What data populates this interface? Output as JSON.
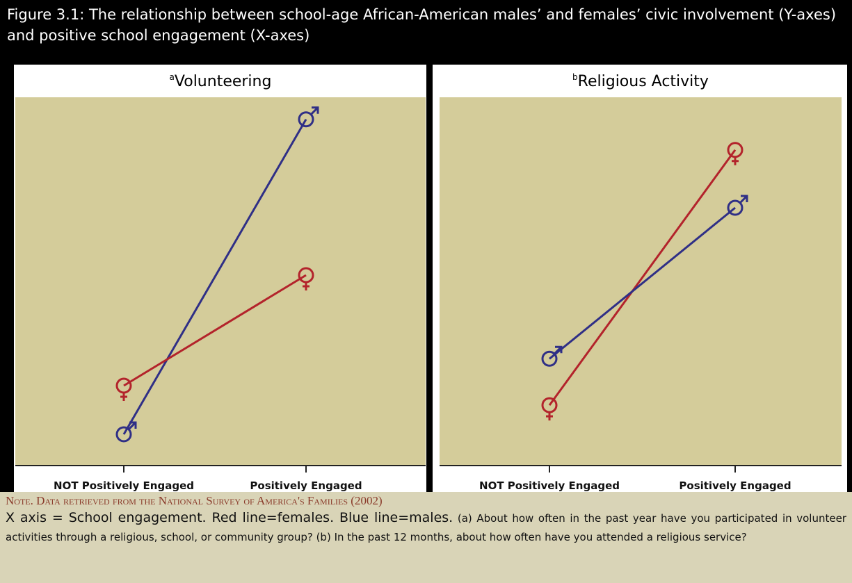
{
  "header": {
    "title": "Figure 3.1: The relationship between school-age African-American males’ and females’ civic involvement (Y-axes) and positive school engagement (X-axes)"
  },
  "chart_data": [
    {
      "type": "line",
      "label": "a",
      "title": "Volunteering",
      "categories": [
        "NOT Positively Engaged",
        "Positively Engaged"
      ],
      "ylim": [
        0,
        100
      ],
      "series": [
        {
          "symbol": "male",
          "color": "#2f2f86",
          "values": [
            8.5,
            94
          ]
        },
        {
          "symbol": "female",
          "color": "#b3232b",
          "values": [
            21.7,
            51.7
          ]
        }
      ]
    },
    {
      "type": "line",
      "label": "b",
      "title": "Religious Activity",
      "categories": [
        "NOT Positively Engaged",
        "Positively Engaged"
      ],
      "ylim": [
        0,
        100
      ],
      "series": [
        {
          "symbol": "female",
          "color": "#b3232b",
          "values": [
            16.4,
            85.7
          ]
        },
        {
          "symbol": "male",
          "color": "#2f2f86",
          "values": [
            29,
            70
          ]
        }
      ]
    }
  ],
  "note": {
    "source": "Note. Data retrieved from the National Survey of America's Families (2002)",
    "lead": "X axis = School engagement. Red line=females. Blue line=males.",
    "questions": "(a) About how often in the past year have you participated in volunteer activities through a religious, school, or community group? (b) In the past 12 months, about how often have you attended a religious service?"
  }
}
